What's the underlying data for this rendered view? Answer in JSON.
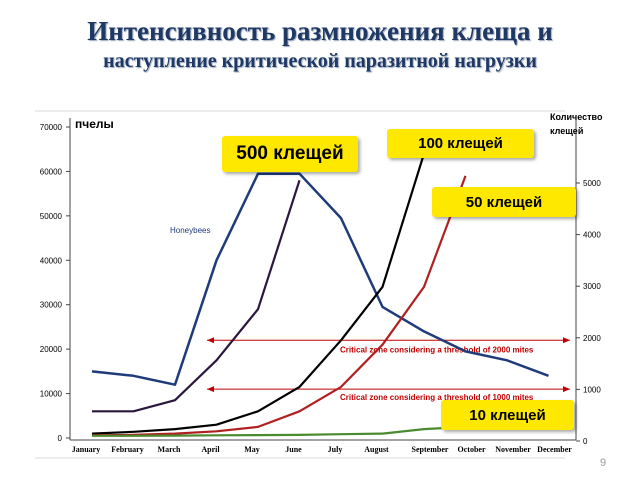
{
  "slide": {
    "title_line1": "Интенсивность размножения клеща и",
    "title_line2": "наступление критической паразитной нагрузки",
    "page_number": "9"
  },
  "chart_data": {
    "type": "line",
    "categories": [
      "January",
      "February",
      "March",
      "April",
      "May",
      "June",
      "July",
      "August",
      "September",
      "October",
      "November",
      "December"
    ],
    "y_left": {
      "label": "пчелы",
      "ticks": [
        0,
        10000,
        20000,
        30000,
        40000,
        50000,
        60000,
        70000
      ],
      "lim": [
        0,
        70000
      ]
    },
    "y_right": {
      "label_line1": "Количество",
      "label_line2": "клещей",
      "ticks": [
        0,
        1000,
        2000,
        3000,
        4000,
        5000
      ],
      "lim": [
        0,
        6000
      ]
    },
    "series": [
      {
        "name": "Honeybees",
        "axis": "left",
        "color": "#1f3b7a",
        "values": [
          15000,
          14000,
          12000,
          40000,
          59500,
          59500,
          49500,
          29500,
          24000,
          19500,
          17500,
          14000
        ]
      },
      {
        "axis": "left",
        "color": "#2b1640",
        "values": [
          6000,
          6000,
          8500,
          17500,
          29000,
          58000,
          null,
          null,
          null,
          null,
          null,
          null
        ]
      },
      {
        "axis": "left",
        "color": "#000000",
        "values": [
          1000,
          1400,
          2000,
          3000,
          6000,
          11500,
          22000,
          34000,
          64000,
          null,
          null,
          null
        ]
      },
      {
        "axis": "left",
        "color": "#b02020",
        "values": [
          600,
          700,
          1000,
          1500,
          2500,
          6000,
          11500,
          21000,
          34000,
          59000,
          null,
          null
        ]
      },
      {
        "axis": "left",
        "color": "#4b8b2f",
        "values": [
          500,
          500,
          550,
          600,
          650,
          700,
          850,
          1000,
          2000,
          2500,
          null,
          null
        ]
      }
    ],
    "critical_lines": [
      {
        "text": "Critical zone considering a threshold of 2000 mites",
        "y": 22000,
        "color": "#c00000"
      },
      {
        "text": "Critical zone considering a threshold of 1000 mites",
        "y": 11000,
        "color": "#c00000"
      }
    ],
    "callouts": [
      {
        "id": "callout-500",
        "text": "500 клещей"
      },
      {
        "id": "callout-100",
        "text": "100 клещей"
      },
      {
        "id": "callout-50",
        "text": "50 клещей"
      },
      {
        "id": "callout-10",
        "text": "10 клещей"
      }
    ],
    "colors": {
      "background": "#ffffff",
      "callout": "#ffe800",
      "title": "#1f3864"
    }
  }
}
